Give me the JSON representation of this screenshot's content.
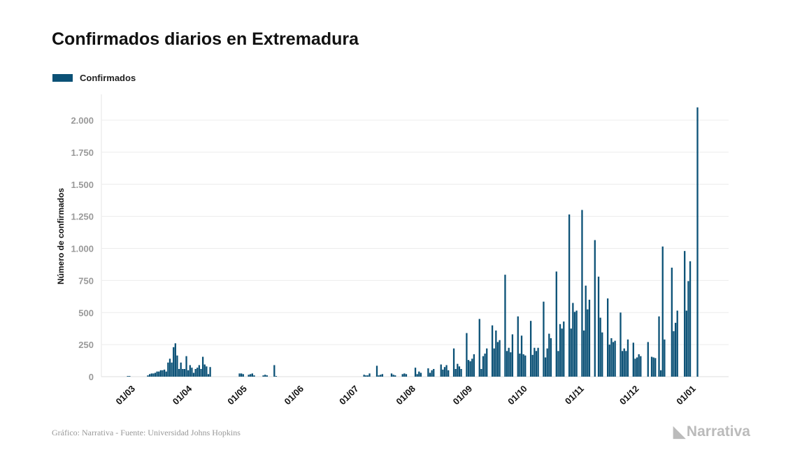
{
  "chart_data": {
    "type": "bar",
    "title": "Confirmados diarios en Extremadura",
    "legend": [
      "Confirmados"
    ],
    "legend_placement": "top-left",
    "ylabel": "Número de confirmados",
    "xlabel": "",
    "ylim": [
      0,
      2000
    ],
    "yticks": [
      0,
      250,
      500,
      750,
      1000,
      1250,
      1500,
      1750,
      2000
    ],
    "ytick_labels": [
      "0",
      "250",
      "500",
      "750",
      "1.000",
      "1.250",
      "1.500",
      "1.750",
      "2.000"
    ],
    "xtick_labels": [
      "01/03",
      "01/04",
      "01/05",
      "01/06",
      "01/07",
      "01/08",
      "01/09",
      "01/10",
      "01/11",
      "01/12",
      "01/01"
    ],
    "xtick_day_offsets": [
      0,
      31,
      61,
      92,
      122,
      153,
      184,
      214,
      245,
      275,
      306
    ],
    "start_day_offset": -6,
    "start_date": "2020-02-24",
    "series": [
      {
        "name": "Confirmados",
        "color": "#0b5176",
        "values": [
          0,
          0,
          0,
          0,
          5,
          5,
          0,
          0,
          0,
          0,
          0,
          0,
          0,
          0,
          0,
          10,
          20,
          25,
          25,
          30,
          40,
          40,
          50,
          50,
          55,
          40,
          110,
          140,
          110,
          230,
          260,
          165,
          60,
          110,
          60,
          60,
          160,
          50,
          90,
          70,
          30,
          60,
          70,
          90,
          60,
          155,
          95,
          80,
          20,
          75,
          0,
          0,
          0,
          0,
          0,
          0,
          0,
          0,
          0,
          0,
          0,
          0,
          0,
          0,
          0,
          25,
          25,
          20,
          0,
          0,
          15,
          20,
          25,
          10,
          0,
          0,
          0,
          0,
          10,
          15,
          10,
          0,
          0,
          0,
          90,
          5,
          0,
          0,
          0,
          0,
          0,
          0,
          0,
          0,
          0,
          0,
          0,
          0,
          0,
          0,
          0,
          0,
          0,
          0,
          0,
          0,
          0,
          0,
          0,
          0,
          0,
          0,
          0,
          0,
          0,
          0,
          0,
          0,
          0,
          0,
          0,
          0,
          0,
          0,
          0,
          0,
          0,
          0,
          0,
          0,
          0,
          0,
          0,
          15,
          10,
          10,
          25,
          0,
          0,
          0,
          85,
          10,
          15,
          20,
          0,
          0,
          0,
          0,
          25,
          15,
          10,
          0,
          0,
          0,
          20,
          25,
          20,
          0,
          0,
          0,
          0,
          70,
          20,
          40,
          30,
          0,
          0,
          0,
          65,
          30,
          50,
          60,
          0,
          0,
          0,
          95,
          55,
          75,
          90,
          50,
          0,
          0,
          220,
          60,
          100,
          80,
          60,
          0,
          0,
          340,
          130,
          120,
          140,
          175,
          0,
          0,
          450,
          60,
          160,
          180,
          220,
          0,
          0,
          400,
          220,
          360,
          270,
          285,
          0,
          0,
          795,
          200,
          225,
          190,
          330,
          0,
          0,
          470,
          180,
          320,
          175,
          165,
          0,
          0,
          435,
          170,
          225,
          200,
          225,
          0,
          0,
          585,
          150,
          220,
          335,
          300,
          0,
          0,
          820,
          200,
          410,
          375,
          430,
          0,
          0,
          1265,
          375,
          575,
          505,
          515,
          0,
          0,
          1300,
          360,
          710,
          525,
          600,
          0,
          0,
          1065,
          0,
          780,
          460,
          345,
          0,
          0,
          610,
          250,
          300,
          270,
          280,
          0,
          0,
          500,
          200,
          220,
          200,
          290,
          0,
          0,
          265,
          140,
          150,
          175,
          160,
          0,
          0,
          0,
          270,
          0,
          155,
          150,
          145,
          0,
          470,
          50,
          1015,
          290,
          0,
          0,
          0,
          850,
          355,
          420,
          515,
          0,
          0,
          0,
          980,
          515,
          745,
          900,
          0,
          0,
          0,
          2100
        ]
      }
    ]
  },
  "footer": {
    "source": "Gráfico: Narrativa - Fuente: Universidad Johns Hopkins",
    "logo": "Narrativa"
  }
}
